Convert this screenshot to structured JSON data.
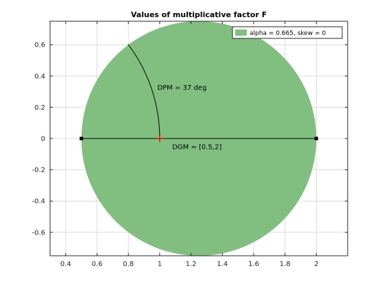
{
  "chart_data": {
    "type": "scatter",
    "title": "Values of multiplicative factor F",
    "xlim": [
      0.3,
      2.2
    ],
    "ylim": [
      -0.75,
      0.75
    ],
    "x_ticks": [
      0.4,
      0.6,
      0.8,
      1,
      1.2,
      1.4,
      1.6,
      1.8,
      2
    ],
    "x_tick_labels": [
      "0.4",
      "0.6",
      "0.8",
      "1",
      "1.2",
      "1.4",
      "1.6",
      "1.8",
      "2"
    ],
    "y_ticks": [
      -0.6,
      -0.4,
      -0.2,
      0,
      0.2,
      0.4,
      0.6
    ],
    "y_tick_labels": [
      "-0.6",
      "-0.4",
      "-0.2",
      "0",
      "0.2",
      "0.4",
      "0.6"
    ],
    "grid": true,
    "legend": {
      "position": "top-right",
      "entries": [
        "alpha = 0.665, skew = 0"
      ]
    },
    "region": {
      "name": "alpha = 0.665, skew = 0",
      "shape": "disk",
      "center": [
        1.25,
        0
      ],
      "radius": 0.75,
      "color": "#80bf80"
    },
    "dgm_segment": {
      "x": [
        0.5,
        2
      ],
      "y": [
        0,
        0
      ],
      "color": "#000000"
    },
    "dpm_arc": {
      "center": [
        0,
        0
      ],
      "radius": 1,
      "angle_from_deg": 0,
      "angle_to_deg": 37,
      "color": "#000000"
    },
    "nominal_point": {
      "x": 1,
      "y": 0,
      "color": "#ff0000"
    },
    "annotations": [
      {
        "text": "DPM = 37 deg",
        "x": 0.985,
        "y": 0.33
      },
      {
        "text": "DGM = [0.5,2]",
        "x": 1.08,
        "y": -0.05
      }
    ]
  }
}
